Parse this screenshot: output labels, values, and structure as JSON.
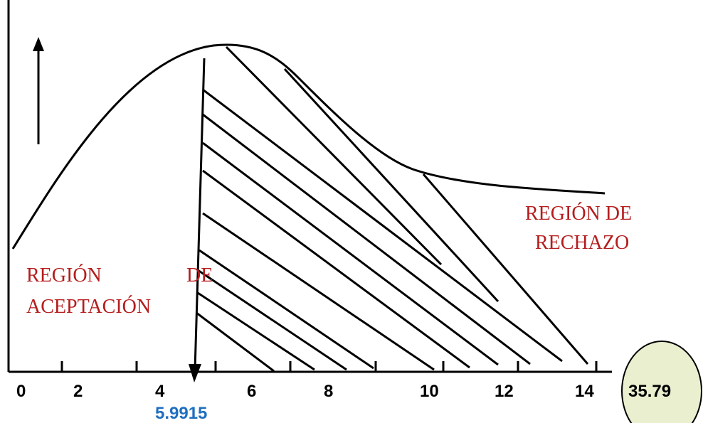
{
  "x_ticks": [
    "0",
    "2",
    "4",
    "6",
    "8",
    "10",
    "12",
    "14"
  ],
  "critical_value": "5.9915",
  "test_statistic": "35.79",
  "acceptance_region": {
    "line1_word1": "REGIÓN",
    "line1_word2": "DE",
    "line2": "ACEPTACIÓN"
  },
  "rejection_region": {
    "line1": "REGIÓN DE",
    "line2": "RECHAZO"
  },
  "colors": {
    "curve": "#000000",
    "region_text": "#b51d1d",
    "critical_value_text": "#1f6fc0",
    "statistic_circle_fill": "#e9efcf"
  }
}
